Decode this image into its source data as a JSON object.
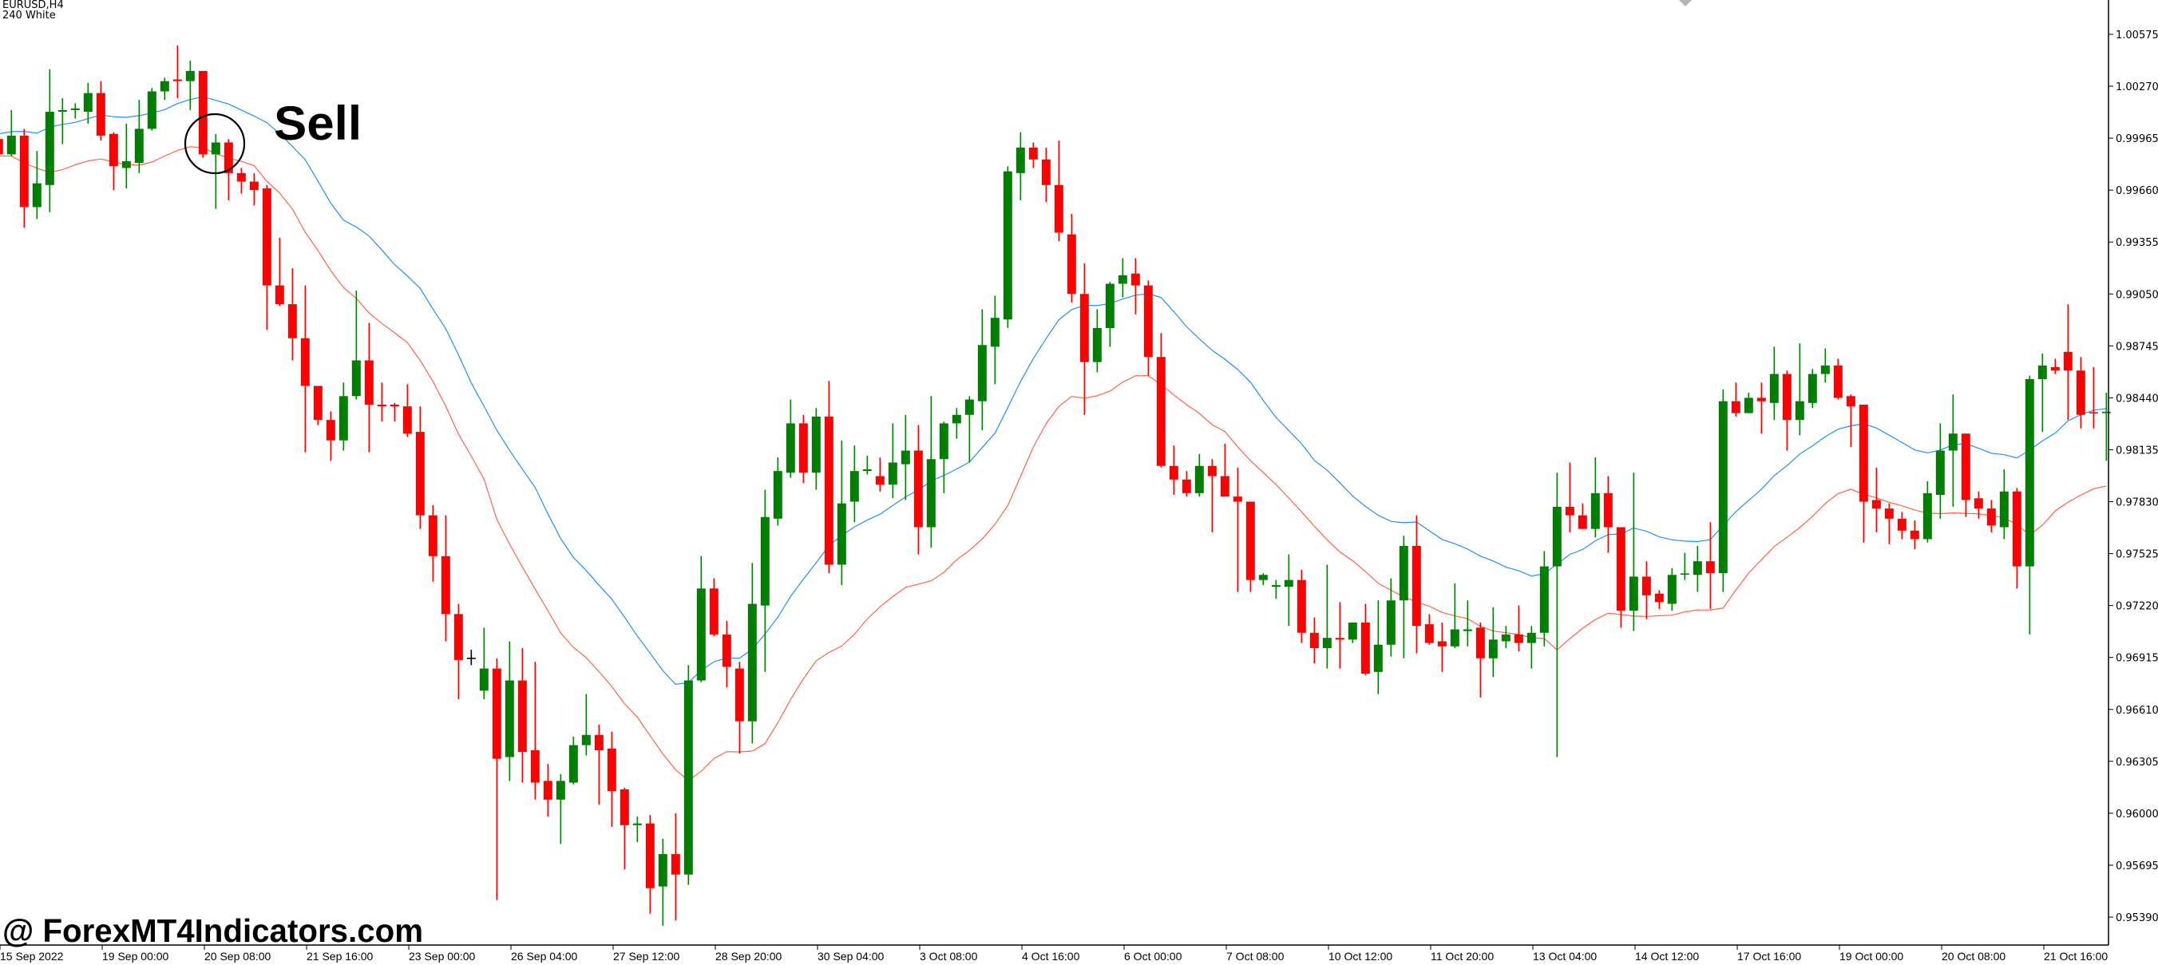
{
  "header": {
    "symbol": "EURUSD,H4",
    "indicator": "240 White"
  },
  "annotation": {
    "label": "Sell",
    "marked_candle_index": 17
  },
  "watermark": "@ ForexMT4Indicators.com",
  "colors": {
    "bull": "#008000",
    "bear": "#ff0000",
    "doji": "#000000",
    "ma_upper": "#1e90ff",
    "ma_lower": "#ff6347",
    "axis": "#000000",
    "background": "#ffffff",
    "one_click_arrow": "#b4b4b4"
  },
  "chart_data": {
    "type": "candlestick",
    "symbol": "EURUSD",
    "timeframe": "H4",
    "ylim": [
      0.9539,
      1.00575
    ],
    "grid": false,
    "y_ticks": [
      "1.00575",
      "1.00270",
      "0.99965",
      "0.99660",
      "0.99355",
      "0.99050",
      "0.98745",
      "0.98440",
      "0.98135",
      "0.97830",
      "0.97525",
      "0.97220",
      "0.96915",
      "0.96610",
      "0.96305",
      "0.96000",
      "0.95695",
      "0.95390"
    ],
    "x_ticks": [
      "15 Sep 2022",
      "19 Sep 00:00",
      "20 Sep 08:00",
      "21 Sep 16:00",
      "23 Sep 00:00",
      "26 Sep 04:00",
      "27 Sep 12:00",
      "28 Sep 20:00",
      "30 Sep 04:00",
      "3 Oct 08:00",
      "4 Oct 16:00",
      "6 Oct 00:00",
      "7 Oct 08:00",
      "10 Oct 12:00",
      "11 Oct 20:00",
      "13 Oct 04:00",
      "14 Oct 12:00",
      "17 Oct 16:00",
      "19 Oct 00:00",
      "20 Oct 08:00",
      "21 Oct 16:00"
    ],
    "ohlc_fields": [
      "open",
      "high",
      "low",
      "close"
    ],
    "candles": [
      [
        0.9996,
        0.9999,
        0.9986,
        0.9987
      ],
      [
        0.9987,
        1.0013,
        0.9986,
        0.9998
      ],
      [
        0.9998,
        1.0002,
        0.9944,
        0.9956
      ],
      [
        0.9956,
        0.9989,
        0.9949,
        0.997
      ],
      [
        0.9969,
        1.0037,
        0.9953,
        1.0012
      ],
      [
        1.0012,
        1.002,
        0.9993,
        1.0013
      ],
      [
        1.0013,
        1.0017,
        1.0008,
        1.0014
      ],
      [
        1.0012,
        1.0029,
        1.0005,
        1.0023
      ],
      [
        1.0023,
        1.003,
        0.9995,
        0.9998
      ],
      [
        0.9999,
        1.0,
        0.9966,
        0.998
      ],
      [
        0.9979,
        1.0005,
        0.9967,
        0.9983
      ],
      [
        0.9982,
        1.0019,
        0.9976,
        1.0002
      ],
      [
        1.0002,
        1.0026,
        1.0001,
        1.0024
      ],
      [
        1.0024,
        1.0032,
        1.0019,
        1.003
      ],
      [
        1.0031,
        1.0051,
        1.002,
        1.003
      ],
      [
        1.003,
        1.0042,
        1.0013,
        1.0036
      ],
      [
        1.0036,
        1.0036,
        0.9985,
        0.9987
      ],
      [
        0.9987,
        0.9999,
        0.9955,
        0.9994
      ],
      [
        0.9994,
        0.9996,
        0.996,
        0.9976
      ],
      [
        0.9976,
        0.9979,
        0.9964,
        0.9971
      ],
      [
        0.9971,
        0.9976,
        0.9957,
        0.9966
      ],
      [
        0.9967,
        0.9969,
        0.9884,
        0.991
      ],
      [
        0.991,
        0.9938,
        0.9898,
        0.9899
      ],
      [
        0.9899,
        0.992,
        0.9866,
        0.9879
      ],
      [
        0.9879,
        0.991,
        0.9812,
        0.9851
      ],
      [
        0.9851,
        0.9851,
        0.9828,
        0.9831
      ],
      [
        0.9831,
        0.9836,
        0.9807,
        0.9819
      ],
      [
        0.9819,
        0.9853,
        0.9813,
        0.9845
      ],
      [
        0.9845,
        0.9907,
        0.9843,
        0.9866
      ],
      [
        0.9866,
        0.9888,
        0.9812,
        0.984
      ],
      [
        0.984,
        0.9853,
        0.983,
        0.9839
      ],
      [
        0.984,
        0.9841,
        0.983,
        0.9839
      ],
      [
        0.9839,
        0.9852,
        0.9821,
        0.9823
      ],
      [
        0.9824,
        0.9839,
        0.9767,
        0.9775
      ],
      [
        0.9775,
        0.9781,
        0.9736,
        0.9751
      ],
      [
        0.9751,
        0.9775,
        0.9701,
        0.9717
      ],
      [
        0.9717,
        0.9723,
        0.9667,
        0.969
      ],
      [
        0.9691,
        0.9696,
        0.9687,
        0.9691
      ],
      [
        0.9672,
        0.9709,
        0.9667,
        0.9685
      ],
      [
        0.9685,
        0.9691,
        0.9549,
        0.9632
      ],
      [
        0.9633,
        0.9701,
        0.9619,
        0.9678
      ],
      [
        0.9678,
        0.9697,
        0.9618,
        0.9636
      ],
      [
        0.9637,
        0.9689,
        0.9608,
        0.9618
      ],
      [
        0.9619,
        0.9629,
        0.9598,
        0.9608
      ],
      [
        0.9608,
        0.9623,
        0.9582,
        0.9619
      ],
      [
        0.9618,
        0.9645,
        0.9617,
        0.964
      ],
      [
        0.964,
        0.967,
        0.9634,
        0.9646
      ],
      [
        0.9646,
        0.9652,
        0.9605,
        0.9637
      ],
      [
        0.9638,
        0.9648,
        0.9592,
        0.9613
      ],
      [
        0.9614,
        0.9615,
        0.9567,
        0.9593
      ],
      [
        0.9593,
        0.9598,
        0.9583,
        0.9594
      ],
      [
        0.9594,
        0.9599,
        0.9541,
        0.9556
      ],
      [
        0.9557,
        0.9585,
        0.9534,
        0.9576
      ],
      [
        0.9576,
        0.96,
        0.9537,
        0.9564
      ],
      [
        0.9564,
        0.9687,
        0.9558,
        0.9678
      ],
      [
        0.9678,
        0.9751,
        0.9677,
        0.9732
      ],
      [
        0.9732,
        0.9738,
        0.9704,
        0.9705
      ],
      [
        0.9705,
        0.9713,
        0.9674,
        0.9686
      ],
      [
        0.9685,
        0.9689,
        0.9635,
        0.9654
      ],
      [
        0.9654,
        0.9747,
        0.9641,
        0.9723
      ],
      [
        0.9722,
        0.979,
        0.9683,
        0.9774
      ],
      [
        0.9773,
        0.9809,
        0.9769,
        0.9801
      ],
      [
        0.98,
        0.9843,
        0.9797,
        0.9829
      ],
      [
        0.9829,
        0.9834,
        0.9794,
        0.98
      ],
      [
        0.98,
        0.9838,
        0.979,
        0.9833
      ],
      [
        0.9833,
        0.9854,
        0.9741,
        0.9746
      ],
      [
        0.9746,
        0.9819,
        0.9734,
        0.9782
      ],
      [
        0.9783,
        0.9816,
        0.9771,
        0.9801
      ],
      [
        0.9801,
        0.981,
        0.9799,
        0.9802
      ],
      [
        0.9798,
        0.9809,
        0.9789,
        0.9793
      ],
      [
        0.9793,
        0.9829,
        0.9785,
        0.9806
      ],
      [
        0.9805,
        0.9834,
        0.9784,
        0.9813
      ],
      [
        0.9813,
        0.9828,
        0.9752,
        0.9768
      ],
      [
        0.9768,
        0.9845,
        0.9756,
        0.9808
      ],
      [
        0.9808,
        0.983,
        0.9788,
        0.9829
      ],
      [
        0.9829,
        0.9838,
        0.982,
        0.9834
      ],
      [
        0.9834,
        0.9845,
        0.9806,
        0.9843
      ],
      [
        0.9842,
        0.9896,
        0.9825,
        0.9875
      ],
      [
        0.9874,
        0.9904,
        0.9852,
        0.9891
      ],
      [
        0.989,
        0.998,
        0.9885,
        0.9977
      ],
      [
        0.9976,
        1.0,
        0.996,
        0.9991
      ],
      [
        0.9991,
        0.9994,
        0.9979,
        0.9984
      ],
      [
        0.9984,
        0.9991,
        0.9959,
        0.9969
      ],
      [
        0.9969,
        0.9995,
        0.9936,
        0.9941
      ],
      [
        0.994,
        0.9952,
        0.99,
        0.9905
      ],
      [
        0.9905,
        0.9923,
        0.9834,
        0.9865
      ],
      [
        0.9865,
        0.9896,
        0.9859,
        0.9885
      ],
      [
        0.9885,
        0.9912,
        0.9874,
        0.9911
      ],
      [
        0.9911,
        0.9926,
        0.9903,
        0.9916
      ],
      [
        0.9917,
        0.9926,
        0.9893,
        0.991
      ],
      [
        0.991,
        0.9913,
        0.9857,
        0.9868
      ],
      [
        0.9868,
        0.9882,
        0.9803,
        0.9804
      ],
      [
        0.9804,
        0.9816,
        0.9787,
        0.9796
      ],
      [
        0.9796,
        0.9801,
        0.9786,
        0.9788
      ],
      [
        0.9788,
        0.9811,
        0.9786,
        0.9804
      ],
      [
        0.9804,
        0.9808,
        0.9765,
        0.9798
      ],
      [
        0.9798,
        0.9817,
        0.9786,
        0.9786
      ],
      [
        0.9786,
        0.9803,
        0.973,
        0.9783
      ],
      [
        0.9783,
        0.9783,
        0.973,
        0.9737
      ],
      [
        0.9737,
        0.9741,
        0.9734,
        0.974
      ],
      [
        0.9733,
        0.9737,
        0.9726,
        0.9734
      ],
      [
        0.9733,
        0.9752,
        0.971,
        0.9737
      ],
      [
        0.9737,
        0.9743,
        0.97,
        0.9706
      ],
      [
        0.9706,
        0.9715,
        0.9688,
        0.9697
      ],
      [
        0.9697,
        0.9746,
        0.9685,
        0.9703
      ],
      [
        0.9703,
        0.9724,
        0.9685,
        0.9702
      ],
      [
        0.9702,
        0.9712,
        0.97,
        0.9712
      ],
      [
        0.9712,
        0.9723,
        0.9681,
        0.9682
      ],
      [
        0.9683,
        0.9725,
        0.967,
        0.9699
      ],
      [
        0.9699,
        0.9738,
        0.9692,
        0.9725
      ],
      [
        0.9725,
        0.9763,
        0.9691,
        0.9757
      ],
      [
        0.9757,
        0.9775,
        0.9694,
        0.971
      ],
      [
        0.9711,
        0.9717,
        0.9699,
        0.97
      ],
      [
        0.9701,
        0.9712,
        0.9683,
        0.9698
      ],
      [
        0.9698,
        0.9735,
        0.9697,
        0.9708
      ],
      [
        0.9707,
        0.9725,
        0.9698,
        0.9708
      ],
      [
        0.9709,
        0.9712,
        0.9668,
        0.9691
      ],
      [
        0.9691,
        0.9721,
        0.968,
        0.9702
      ],
      [
        0.9701,
        0.971,
        0.9697,
        0.9705
      ],
      [
        0.9705,
        0.9722,
        0.9695,
        0.97
      ],
      [
        0.97,
        0.971,
        0.9685,
        0.9706
      ],
      [
        0.9706,
        0.9754,
        0.9698,
        0.9745
      ],
      [
        0.9745,
        0.98,
        0.9633,
        0.978
      ],
      [
        0.978,
        0.9806,
        0.9765,
        0.9775
      ],
      [
        0.9775,
        0.9782,
        0.9767,
        0.9767
      ],
      [
        0.9767,
        0.9809,
        0.9762,
        0.9788
      ],
      [
        0.9788,
        0.9798,
        0.9753,
        0.9768
      ],
      [
        0.9768,
        0.9768,
        0.9709,
        0.9719
      ],
      [
        0.9719,
        0.98,
        0.9707,
        0.9739
      ],
      [
        0.9739,
        0.9748,
        0.9714,
        0.9728
      ],
      [
        0.9729,
        0.9731,
        0.972,
        0.9724
      ],
      [
        0.9723,
        0.9744,
        0.9719,
        0.974
      ],
      [
        0.974,
        0.9753,
        0.9737,
        0.97405
      ],
      [
        0.974,
        0.9757,
        0.973,
        0.9748
      ],
      [
        0.9748,
        0.9771,
        0.972,
        0.9741
      ],
      [
        0.9741,
        0.9849,
        0.973,
        0.9842
      ],
      [
        0.9842,
        0.9853,
        0.9833,
        0.9835
      ],
      [
        0.9835,
        0.9847,
        0.9835,
        0.9844
      ],
      [
        0.9844,
        0.9853,
        0.9823,
        0.9842
      ],
      [
        0.9841,
        0.9874,
        0.9831,
        0.9858
      ],
      [
        0.9858,
        0.986,
        0.9813,
        0.9831
      ],
      [
        0.9831,
        0.9876,
        0.9822,
        0.9842
      ],
      [
        0.9841,
        0.9861,
        0.9838,
        0.9858
      ],
      [
        0.9858,
        0.9873,
        0.9853,
        0.9863
      ],
      [
        0.9863,
        0.9867,
        0.9843,
        0.9844
      ],
      [
        0.9845,
        0.9846,
        0.9815,
        0.9839
      ],
      [
        0.984,
        0.984,
        0.9759,
        0.9783
      ],
      [
        0.9784,
        0.9803,
        0.9765,
        0.9779
      ],
      [
        0.9779,
        0.9782,
        0.9758,
        0.9773
      ],
      [
        0.9773,
        0.9777,
        0.9761,
        0.9766
      ],
      [
        0.9766,
        0.9772,
        0.9755,
        0.9761
      ],
      [
        0.9761,
        0.9795,
        0.9759,
        0.9788
      ],
      [
        0.9787,
        0.9829,
        0.9773,
        0.9813
      ],
      [
        0.9813,
        0.9846,
        0.978,
        0.9823
      ],
      [
        0.9823,
        0.9823,
        0.9774,
        0.9784
      ],
      [
        0.9785,
        0.9789,
        0.9773,
        0.9779
      ],
      [
        0.9779,
        0.9784,
        0.9765,
        0.9769
      ],
      [
        0.9768,
        0.9802,
        0.9761,
        0.9789
      ],
      [
        0.9789,
        0.9791,
        0.9732,
        0.9745
      ],
      [
        0.9745,
        0.9857,
        0.9705,
        0.9855
      ],
      [
        0.9855,
        0.987,
        0.9824,
        0.9863
      ],
      [
        0.9862,
        0.9867,
        0.9858,
        0.986
      ],
      [
        0.9871,
        0.9899,
        0.9831,
        0.986
      ],
      [
        0.986,
        0.9868,
        0.9826,
        0.9834
      ],
      [
        0.98352,
        0.9862,
        0.9826,
        0.98348
      ],
      [
        0.9835,
        0.9847,
        0.9807,
        0.98358
      ]
    ],
    "overlays": [
      "upper moving average (blue)",
      "lower moving average (red)"
    ]
  }
}
